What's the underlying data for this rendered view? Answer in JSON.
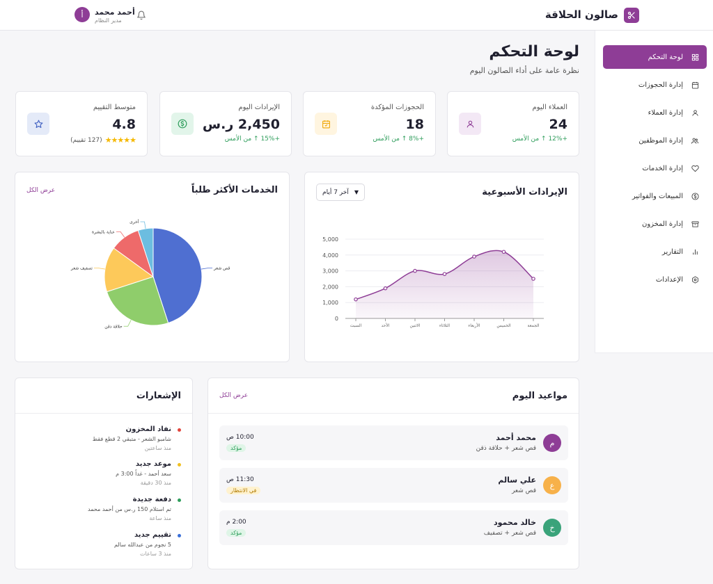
{
  "header": {
    "brand_name": "صالون الحلاقة",
    "user_initial": "أ",
    "user_name": "أحمد محمد",
    "user_role": "مدير النظام"
  },
  "sidebar": {
    "items": [
      {
        "label": "لوحة التحكم",
        "icon": "dashboard-icon",
        "active": true
      },
      {
        "label": "إدارة الحجوزات",
        "icon": "calendar-icon"
      },
      {
        "label": "إدارة العملاء",
        "icon": "user-icon"
      },
      {
        "label": "إدارة الموظفين",
        "icon": "users-icon"
      },
      {
        "label": "إدارة الخدمات",
        "icon": "heart-hand-icon"
      },
      {
        "label": "المبيعات والفواتير",
        "icon": "dollar-icon"
      },
      {
        "label": "إدارة المخزون",
        "icon": "box-icon"
      },
      {
        "label": "التقارير",
        "icon": "bar-chart-icon"
      },
      {
        "label": "الإعدادات",
        "icon": "settings-icon"
      }
    ]
  },
  "page": {
    "title": "لوحة التحكم",
    "subtitle": "نظرة عامة على أداء الصالون اليوم"
  },
  "stats": [
    {
      "label": "العملاء اليوم",
      "value": "24",
      "change": "+12% ↑ من الأمس",
      "icon": "user-icon",
      "color": "#8e3d96"
    },
    {
      "label": "الحجوزات المؤكدة",
      "value": "18",
      "change": "+8% ↑ من الأمس",
      "icon": "calendar-icon",
      "color": "#f0a500"
    },
    {
      "label": "الإيرادات اليوم",
      "value": "2,450 ر.س",
      "change": "+15% ↑ من الأمس",
      "icon": "dollar-icon",
      "color": "#2e9d5b"
    },
    {
      "label": "متوسط التقييم",
      "value": "4.8",
      "rating_text": "(127 تقييم)",
      "icon": "star-icon",
      "color": "#3a5bbf"
    }
  ],
  "revenue_panel": {
    "title": "الإيرادات الأسبوعية",
    "select_value": "آخر 7 أيام"
  },
  "services_panel": {
    "title": "الخدمات الأكثر طلباً",
    "view_all": "عرض الكل"
  },
  "chart_data": [
    {
      "type": "area",
      "categories": [
        "السبت",
        "الأحد",
        "الاثنين",
        "الثلاثاء",
        "الأربعاء",
        "الخميس",
        "الجمعة"
      ],
      "values": [
        1200,
        1900,
        3000,
        2800,
        3900,
        4200,
        2500
      ],
      "ylim": [
        0,
        5000
      ],
      "yticks": [
        "0",
        "1,000",
        "2,000",
        "3,000",
        "4,000",
        "5,000"
      ],
      "grid": true,
      "color": "#8e3d96"
    },
    {
      "type": "pie",
      "labels": [
        "قص شعر",
        "حلاقة ذقن",
        "تصفيف شعر",
        "عناية بالبشرة",
        "أخرى"
      ],
      "values": [
        45,
        25,
        15,
        10,
        5
      ],
      "colors": [
        "#4f6fd1",
        "#8fcd6b",
        "#fdc95a",
        "#ee6a6a",
        "#6cbde0"
      ]
    }
  ],
  "appointments_panel": {
    "title": "مواعيد اليوم",
    "view_all": "عرض الكل",
    "items": [
      {
        "initial": "م",
        "name": "محمد أحمد",
        "service": "قص شعر + حلاقة ذقن",
        "time": "10:00 ص",
        "status": "مؤكد",
        "status_type": "ok",
        "color": "#8e3d96"
      },
      {
        "initial": "ع",
        "name": "علي سالم",
        "service": "قص شعر",
        "time": "11:30 ص",
        "status": "في الانتظار",
        "status_type": "wait",
        "color": "#f7b14a"
      },
      {
        "initial": "خ",
        "name": "خالد محمود",
        "service": "قص شعر + تصفيف",
        "time": "2:00 م",
        "status": "مؤكد",
        "status_type": "ok",
        "color": "#3aa37a"
      }
    ]
  },
  "notifications_panel": {
    "title": "الإشعارات",
    "items": [
      {
        "title": "نفاد المخزون",
        "text": "شامبو الشعر - متبقي 2 قطع فقط",
        "time": "منذ ساعتين",
        "color": "#e2453c"
      },
      {
        "title": "موعد جديد",
        "text": "سعد أحمد - غداً 3:00 م",
        "time": "منذ 30 دقيقة",
        "color": "#f0c020"
      },
      {
        "title": "دفعة جديدة",
        "text": "تم استلام 150 ر.س من أحمد محمد",
        "time": "منذ ساعة",
        "color": "#2e9d5b"
      },
      {
        "title": "تقييم جديد",
        "text": "5 نجوم من عبدالله سالم",
        "time": "منذ 3 ساعات",
        "color": "#3a6fd8"
      }
    ]
  }
}
